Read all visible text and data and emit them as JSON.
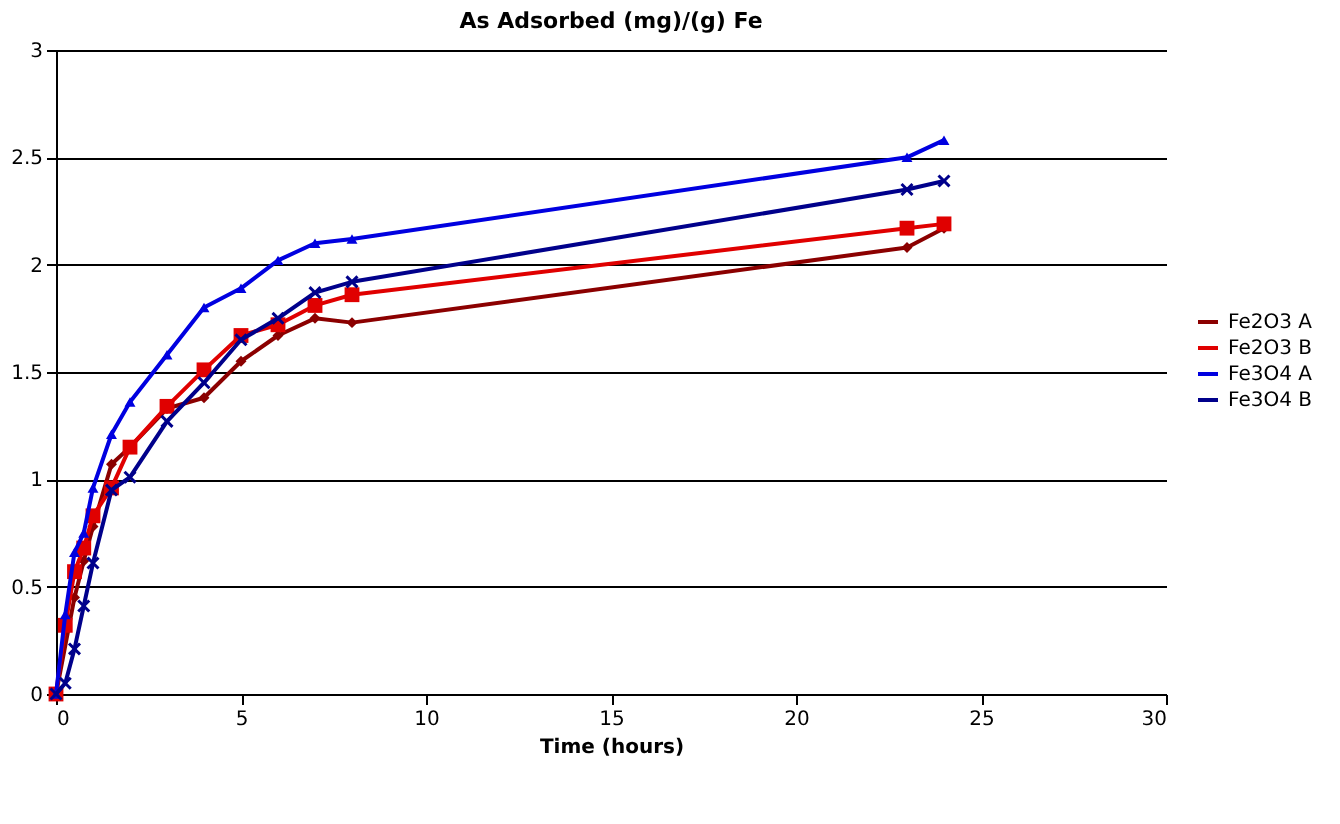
{
  "chart_data": {
    "type": "line",
    "title": "As Adsorbed (mg)/(g) Fe",
    "xlabel": "Time (hours)",
    "x": [
      0,
      0.25,
      0.5,
      0.75,
      1,
      1.5,
      2,
      3,
      4,
      5,
      6,
      7,
      8,
      23,
      24
    ],
    "series": [
      {
        "name": "Fe2O3 A",
        "color": "#8b0000",
        "marker": "diamond",
        "x": [
          0,
          0.5,
          0.75,
          1,
          1.5,
          2,
          3,
          4,
          5,
          6,
          7,
          8,
          23,
          24
        ],
        "values": [
          0,
          0.45,
          0.62,
          0.78,
          1.07,
          1.15,
          1.33,
          1.38,
          1.55,
          1.67,
          1.75,
          1.73,
          2.08,
          2.17
        ]
      },
      {
        "name": "Fe2O3 B",
        "color": "#e00000",
        "marker": "square",
        "values": [
          0,
          0.32,
          0.57,
          0.68,
          0.83,
          0.96,
          1.15,
          1.34,
          1.51,
          1.67,
          1.72,
          1.81,
          1.86,
          2.17,
          2.19
        ]
      },
      {
        "name": "Fe3O4 A",
        "color": "#0000e0",
        "marker": "triangle",
        "values": [
          0,
          0.37,
          0.66,
          0.75,
          0.96,
          1.21,
          1.36,
          1.58,
          1.8,
          1.89,
          2.02,
          2.1,
          2.12,
          2.5,
          2.58
        ]
      },
      {
        "name": "Fe3O4 B",
        "color": "#00008b",
        "marker": "cross",
        "values": [
          0,
          0.05,
          0.21,
          0.41,
          0.61,
          0.95,
          1.01,
          1.27,
          1.45,
          1.65,
          1.75,
          1.87,
          1.92,
          2.35,
          2.39
        ]
      }
    ],
    "xlim": [
      0,
      30
    ],
    "xticks": [
      0,
      5,
      10,
      15,
      20,
      25,
      30
    ],
    "ylim": [
      0,
      3
    ],
    "yticks": [
      0,
      0.5,
      1,
      1.5,
      2,
      2.5,
      3
    ],
    "grid": "y",
    "legend": "right",
    "line_style": "solid"
  }
}
